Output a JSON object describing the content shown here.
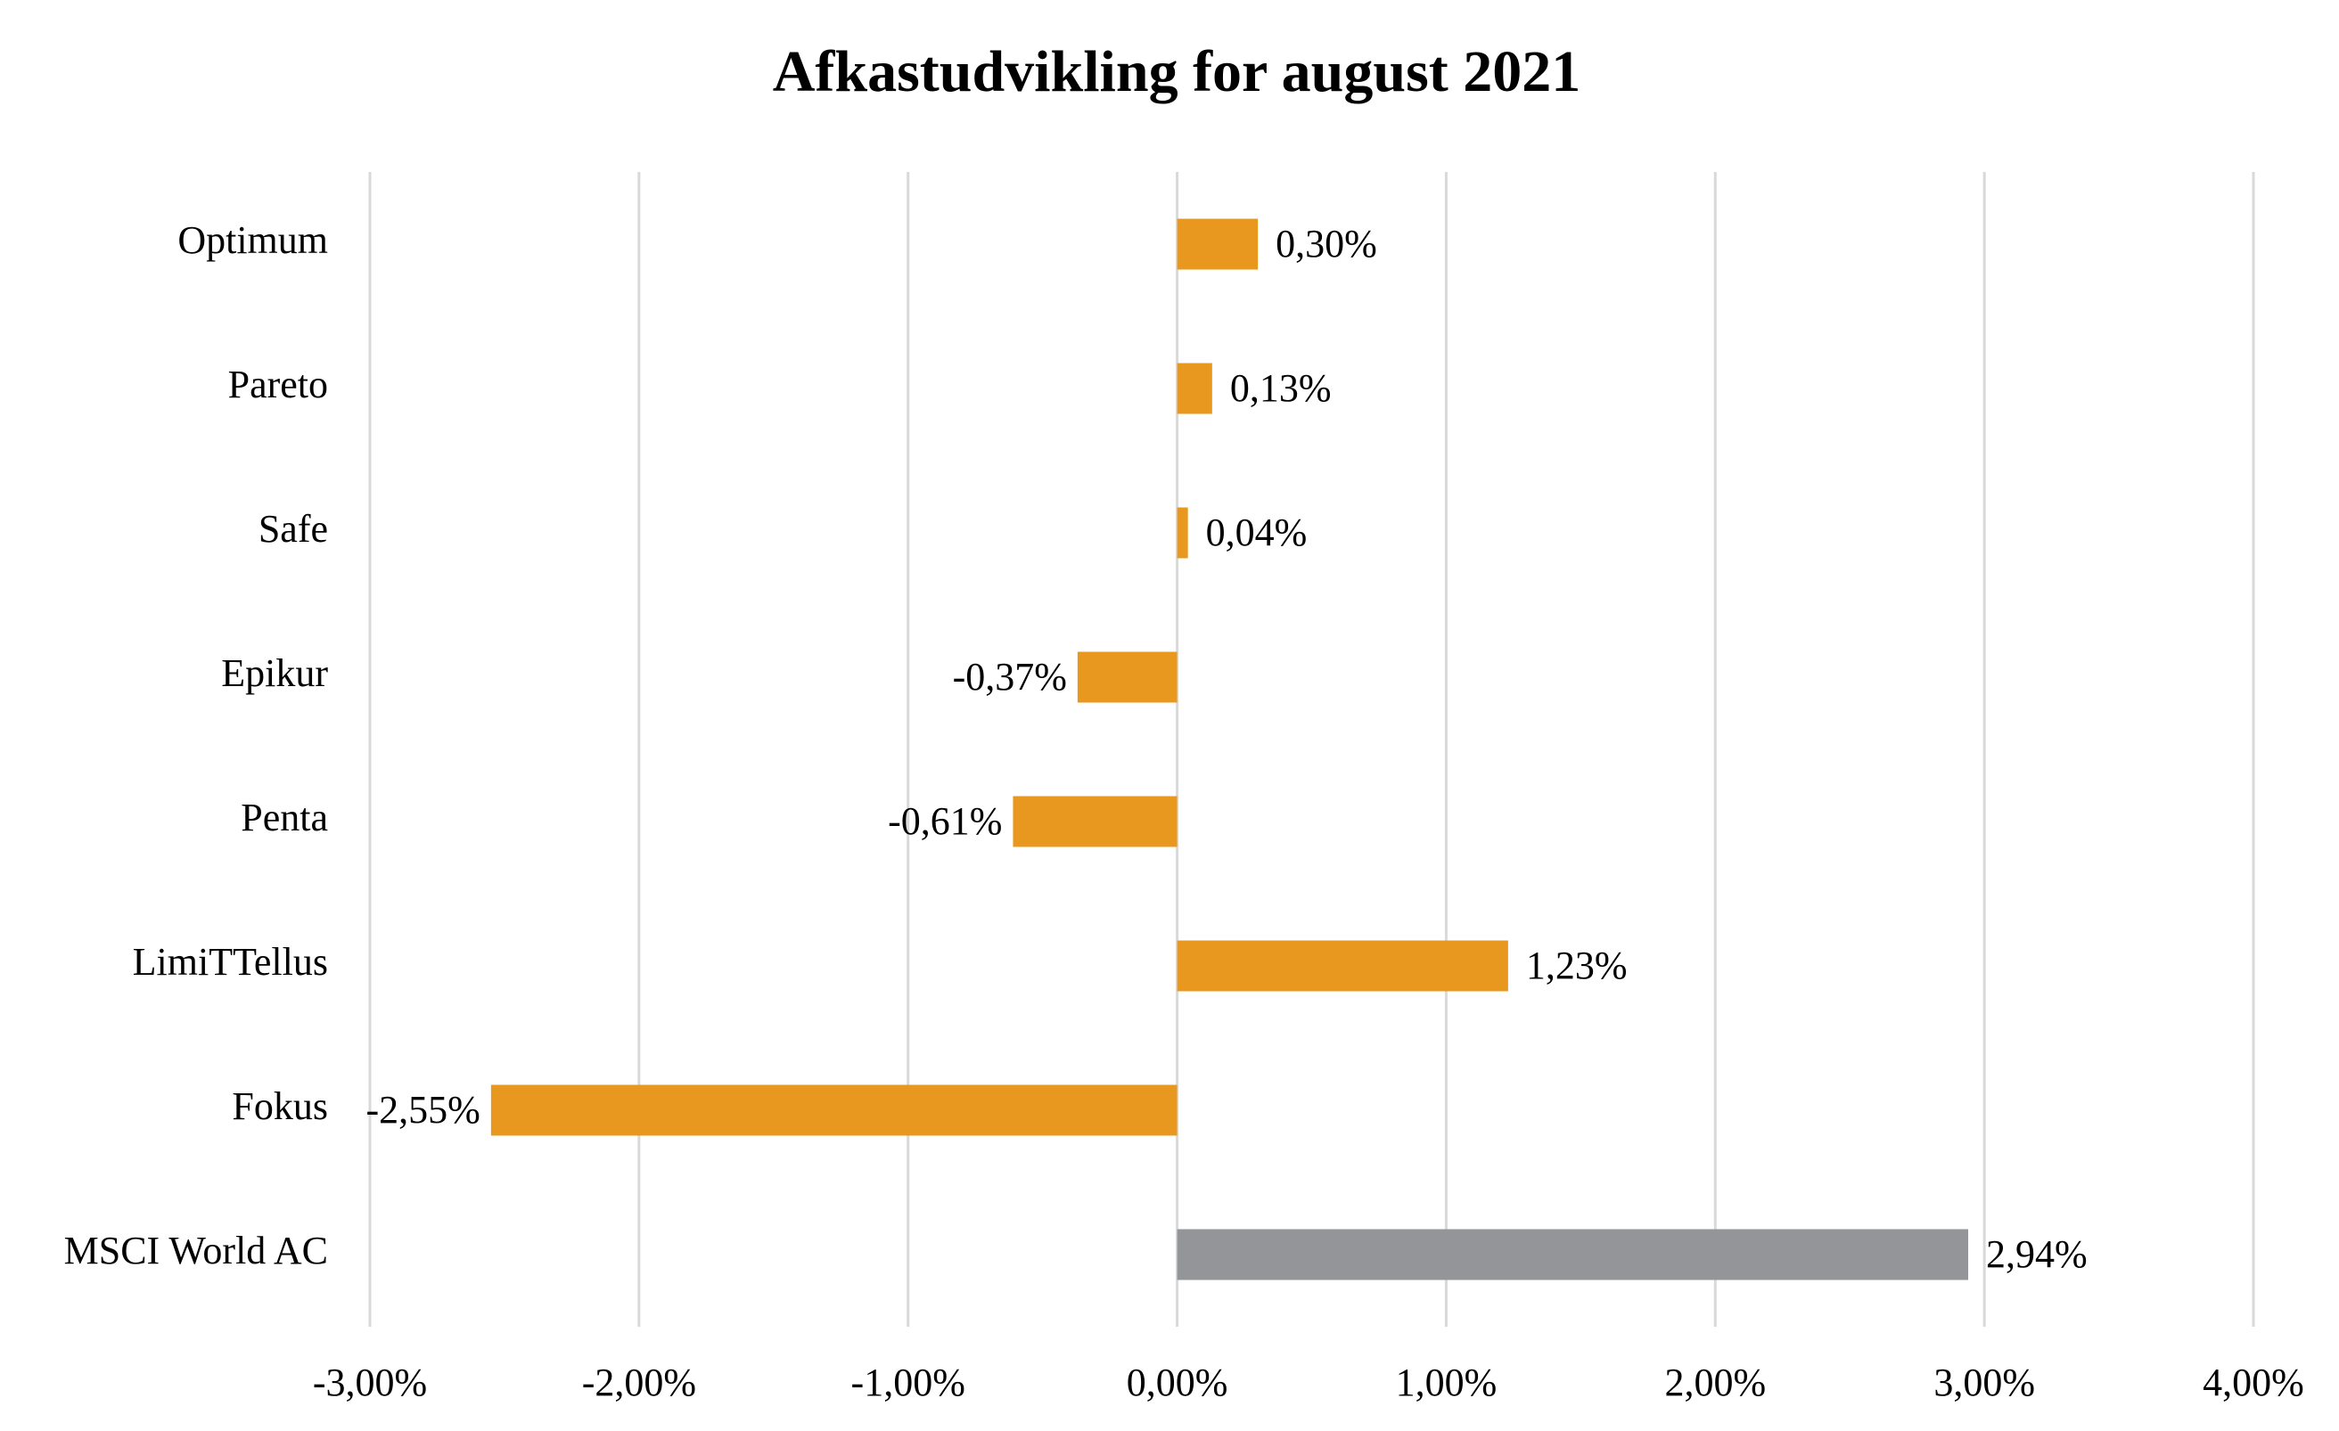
{
  "chart_data": {
    "type": "hbar",
    "title": "Afkastudvikling for august 2021",
    "categories": [
      "Optimum",
      "Pareto",
      "Safe",
      "Epikur",
      "Penta",
      "LimiTTellus",
      "Fokus",
      "MSCI World AC"
    ],
    "values": [
      0.3,
      0.13,
      0.04,
      -0.37,
      -0.61,
      1.23,
      -2.55,
      2.94
    ],
    "value_labels": [
      "0,30%",
      "0,13%",
      "0,04%",
      "-0,37%",
      "-0,61%",
      "1,23%",
      "-2,55%",
      "2,94%"
    ],
    "colors": [
      "#e8981e",
      "#e8981e",
      "#e8981e",
      "#e8981e",
      "#e8981e",
      "#e8981e",
      "#e8981e",
      "#939598"
    ],
    "xlim": [
      -3,
      4
    ],
    "xticks": [
      {
        "value": -3,
        "label": "-3,00%"
      },
      {
        "value": -2,
        "label": "-2,00%"
      },
      {
        "value": -1,
        "label": "-1,00%"
      },
      {
        "value": 0,
        "label": "0,00%"
      },
      {
        "value": 1,
        "label": "1,00%"
      },
      {
        "value": 2,
        "label": "2,00%"
      },
      {
        "value": 3,
        "label": "3,00%"
      },
      {
        "value": 4,
        "label": "4,00%"
      }
    ],
    "grid": true
  }
}
